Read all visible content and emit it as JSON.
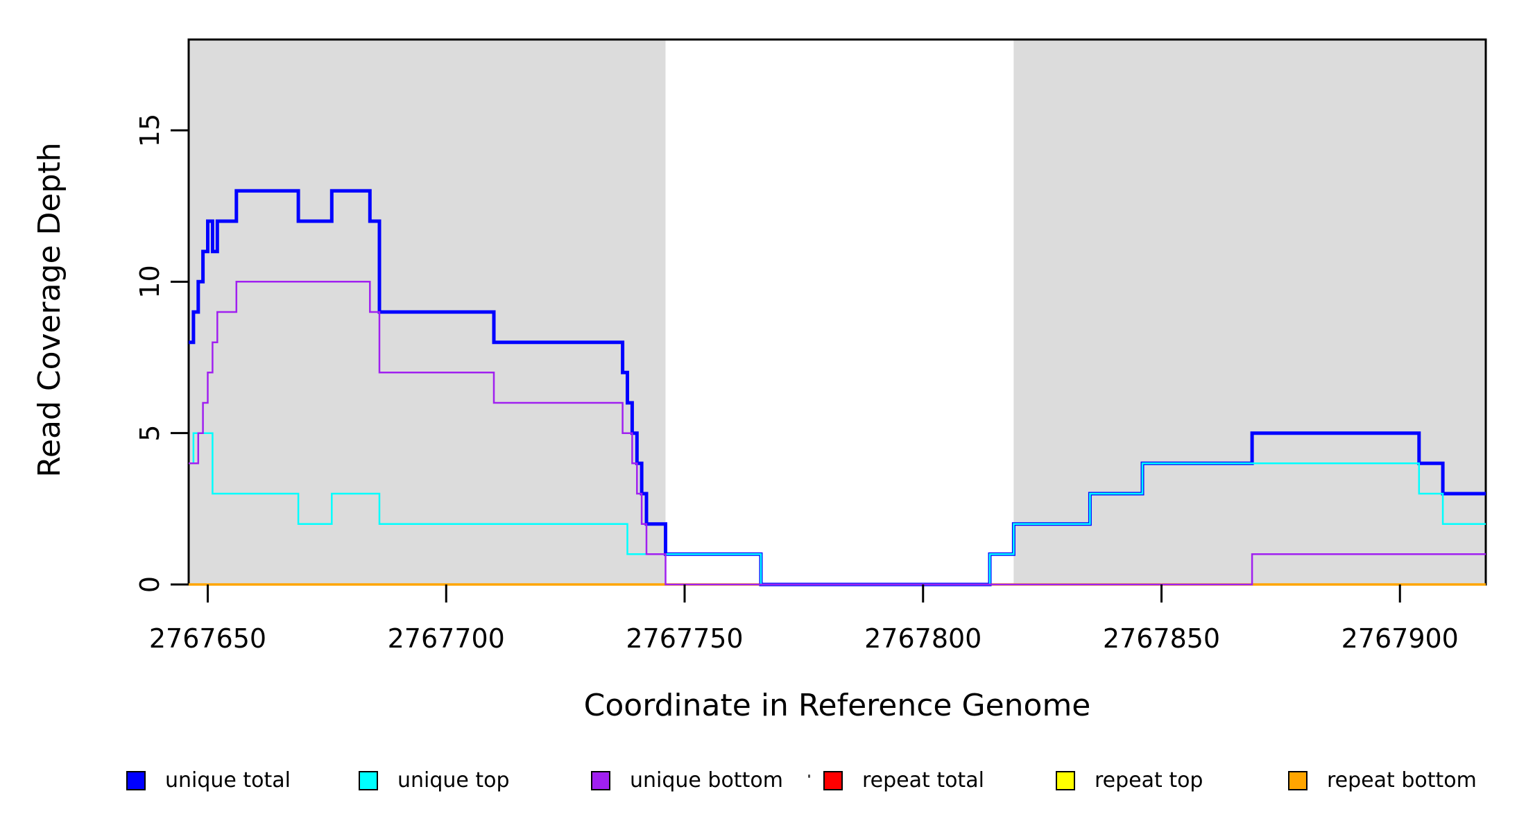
{
  "figure": {
    "background": "#ffffff"
  },
  "chart_data": {
    "type": "line",
    "subtype": "step-coverage",
    "title": "",
    "xlabel": "Coordinate in Reference Genome",
    "ylabel": "Read Coverage Depth",
    "xlim": [
      2767646,
      2767918
    ],
    "ylim": [
      0,
      18
    ],
    "x_ticks": [
      2767650,
      2767700,
      2767750,
      2767800,
      2767850,
      2767900
    ],
    "y_ticks": [
      0,
      5,
      10,
      15
    ],
    "grid": false,
    "legend_position": "bottom",
    "shaded_regions": [
      {
        "name": "unique-region-left",
        "x_start": 2767646,
        "x_end": 2767746,
        "color": "#DCDCDC"
      },
      {
        "name": "unique-region-right",
        "x_start": 2767819,
        "x_end": 2767918,
        "color": "#DCDCDC"
      }
    ],
    "series": [
      {
        "name": "repeat total",
        "color": "#FF0000",
        "line_width": 2.5,
        "points": [
          [
            2767646,
            0
          ]
        ]
      },
      {
        "name": "repeat top",
        "color": "#FFFF00",
        "line_width": 2.5,
        "points": [
          [
            2767646,
            0
          ]
        ]
      },
      {
        "name": "repeat bottom",
        "color": "#FFA500",
        "line_width": 3.5,
        "points": [
          [
            2767646,
            0
          ]
        ]
      },
      {
        "name": "unique total",
        "color": "#0000FF",
        "line_width": 5,
        "points": [
          [
            2767646,
            8
          ],
          [
            2767647,
            9
          ],
          [
            2767648,
            10
          ],
          [
            2767649,
            11
          ],
          [
            2767650,
            12
          ],
          [
            2767651,
            11
          ],
          [
            2767652,
            12
          ],
          [
            2767656,
            13
          ],
          [
            2767669,
            12
          ],
          [
            2767676,
            13
          ],
          [
            2767684,
            12
          ],
          [
            2767686,
            9
          ],
          [
            2767710,
            8
          ],
          [
            2767737,
            7
          ],
          [
            2767738,
            6
          ],
          [
            2767739,
            5
          ],
          [
            2767740,
            4
          ],
          [
            2767741,
            3
          ],
          [
            2767742,
            2
          ],
          [
            2767746,
            1
          ],
          [
            2767766,
            0
          ],
          [
            2767814,
            1
          ],
          [
            2767819,
            2
          ],
          [
            2767835,
            3
          ],
          [
            2767846,
            4
          ],
          [
            2767869,
            5
          ],
          [
            2767904,
            4
          ],
          [
            2767909,
            3
          ]
        ]
      },
      {
        "name": "unique top",
        "color": "#00FFFF",
        "line_width": 2.5,
        "points": [
          [
            2767646,
            4
          ],
          [
            2767647,
            5
          ],
          [
            2767651,
            3
          ],
          [
            2767669,
            2
          ],
          [
            2767676,
            3
          ],
          [
            2767686,
            2
          ],
          [
            2767738,
            1
          ],
          [
            2767766,
            0
          ],
          [
            2767814,
            1
          ],
          [
            2767819,
            2
          ],
          [
            2767835,
            3
          ],
          [
            2767846,
            4
          ],
          [
            2767904,
            3
          ],
          [
            2767909,
            2
          ]
        ]
      },
      {
        "name": "unique bottom",
        "color": "#A020F0",
        "line_width": 2.5,
        "points": [
          [
            2767646,
            4
          ],
          [
            2767648,
            5
          ],
          [
            2767649,
            6
          ],
          [
            2767650,
            7
          ],
          [
            2767651,
            8
          ],
          [
            2767652,
            9
          ],
          [
            2767656,
            10
          ],
          [
            2767684,
            9
          ],
          [
            2767686,
            7
          ],
          [
            2767710,
            6
          ],
          [
            2767737,
            5
          ],
          [
            2767739,
            4
          ],
          [
            2767740,
            3
          ],
          [
            2767741,
            2
          ],
          [
            2767742,
            1
          ],
          [
            2767746,
            0
          ],
          [
            2767869,
            1
          ]
        ]
      }
    ],
    "legend_entries": [
      {
        "label": "unique total",
        "color": "#0000FF"
      },
      {
        "label": "unique top",
        "color": "#00FFFF"
      },
      {
        "label": "unique bottom",
        "color": "#A020F0"
      },
      {
        "label": "repeat total",
        "color": "#FF0000"
      },
      {
        "label": "repeat top",
        "color": "#FFFF00"
      },
      {
        "label": "repeat bottom",
        "color": "#FFA500"
      }
    ]
  }
}
